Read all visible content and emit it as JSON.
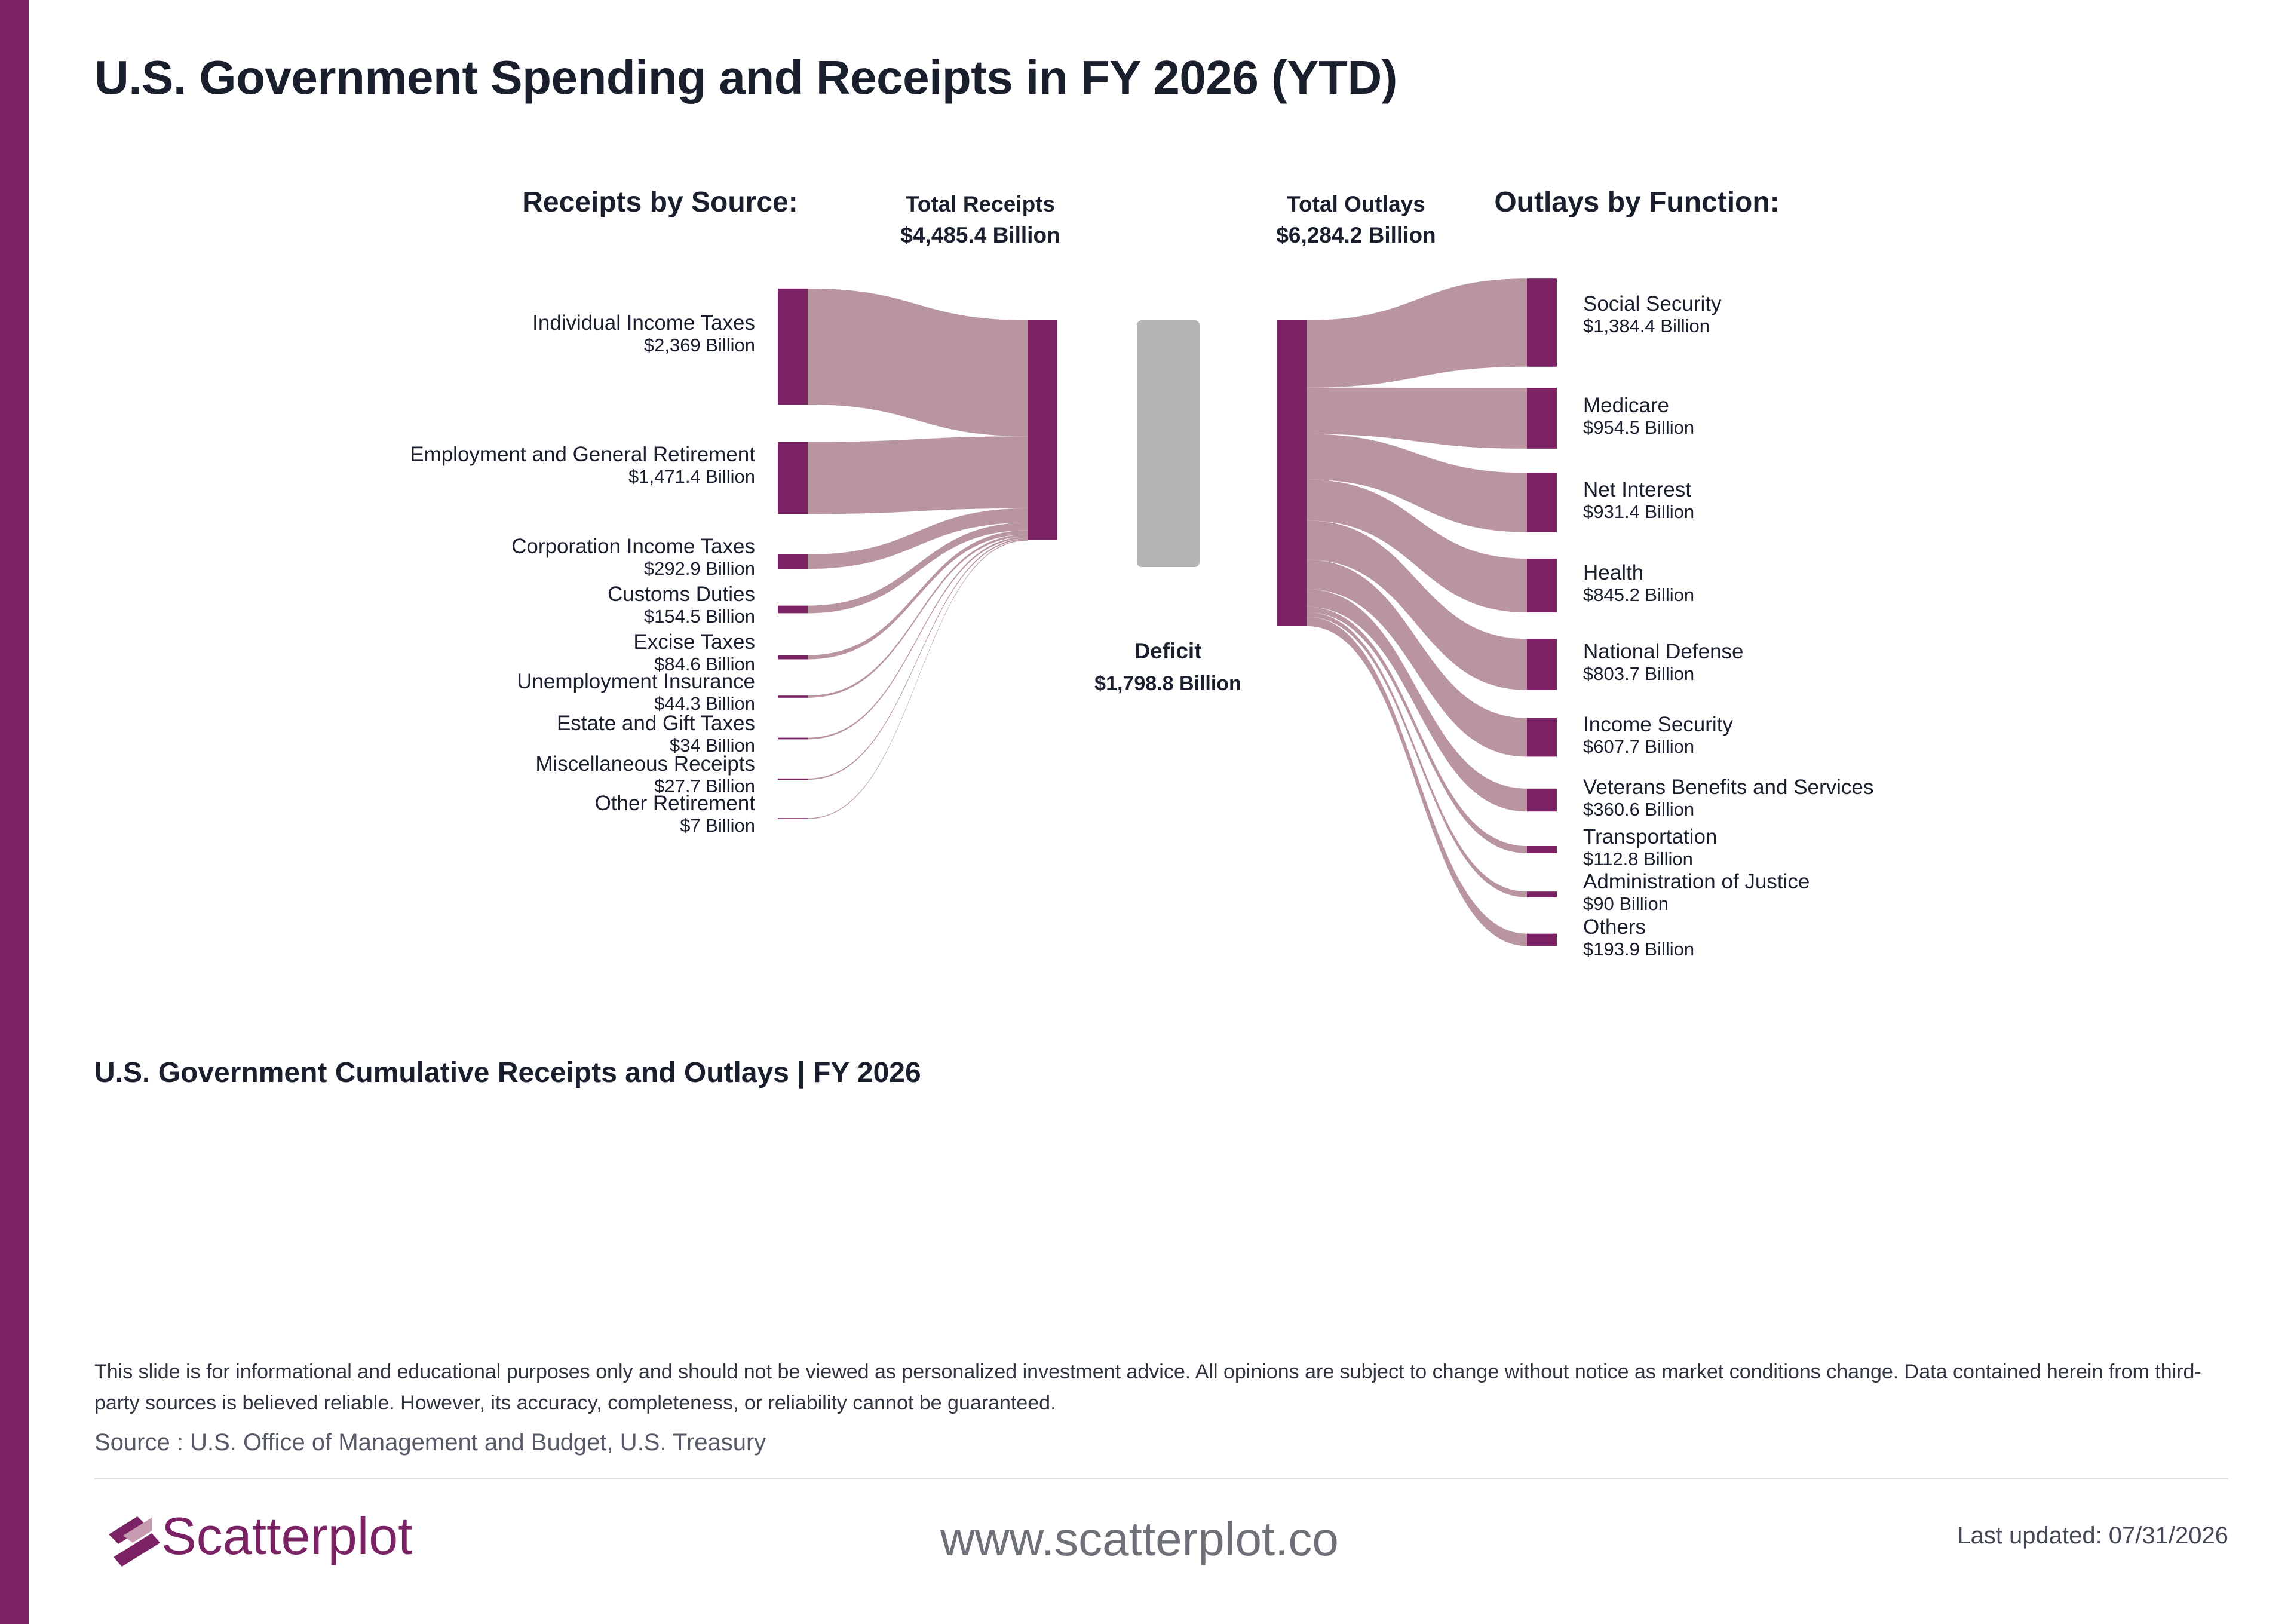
{
  "title": "U.S. Government Spending and Receipts in FY 2026 (YTD)",
  "colors": {
    "accent": "#7a2263",
    "flow": "#b9959f",
    "deficit": "#b5b5b5",
    "text": "#1a1f2e"
  },
  "chart_data": {
    "type": "sankey",
    "receipts_heading": "Receipts by Source:",
    "outlays_heading": "Outlays by Function:",
    "total_receipts": {
      "label": "Total Receipts",
      "value_text": "$4,485.4 Billion",
      "value": 4485.4
    },
    "total_outlays": {
      "label": "Total Outlays",
      "value_text": "$6,284.2 Billion",
      "value": 6284.2
    },
    "deficit": {
      "label": "Deficit",
      "value_text": "$1,798.8 Billion",
      "value": 1798.8
    },
    "receipts": [
      {
        "name": "Individual Income Taxes",
        "value_text": "$2,369 Billion",
        "value": 2369
      },
      {
        "name": "Employment and General Retirement",
        "value_text": "$1,471.4 Billion",
        "value": 1471.4
      },
      {
        "name": "Corporation Income Taxes",
        "value_text": "$292.9 Billion",
        "value": 292.9
      },
      {
        "name": "Customs Duties",
        "value_text": "$154.5 Billion",
        "value": 154.5
      },
      {
        "name": "Excise Taxes",
        "value_text": "$84.6 Billion",
        "value": 84.6
      },
      {
        "name": "Unemployment Insurance",
        "value_text": "$44.3 Billion",
        "value": 44.3
      },
      {
        "name": "Estate and Gift Taxes",
        "value_text": "$34 Billion",
        "value": 34
      },
      {
        "name": "Miscellaneous Receipts",
        "value_text": "$27.7 Billion",
        "value": 27.7
      },
      {
        "name": "Other Retirement",
        "value_text": "$7 Billion",
        "value": 7
      }
    ],
    "outlays": [
      {
        "name": "Social Security",
        "value_text": "$1,384.4 Billion",
        "value": 1384.4
      },
      {
        "name": "Medicare",
        "value_text": "$954.5 Billion",
        "value": 954.5
      },
      {
        "name": "Net Interest",
        "value_text": "$931.4 Billion",
        "value": 931.4
      },
      {
        "name": "Health",
        "value_text": "$845.2 Billion",
        "value": 845.2
      },
      {
        "name": "National Defense",
        "value_text": "$803.7 Billion",
        "value": 803.7
      },
      {
        "name": "Income Security",
        "value_text": "$607.7 Billion",
        "value": 607.7
      },
      {
        "name": "Veterans Benefits and Services",
        "value_text": "$360.6 Billion",
        "value": 360.6
      },
      {
        "name": "Transportation",
        "value_text": "$112.8 Billion",
        "value": 112.8
      },
      {
        "name": "Administration of Justice",
        "value_text": "$90 Billion",
        "value": 90
      },
      {
        "name": "Others",
        "value_text": "$193.9 Billion",
        "value": 193.9
      }
    ]
  },
  "subtitle": "U.S. Government Cumulative Receipts and Outlays | FY 2026",
  "footer": {
    "disclaimer": "This slide is for informational and educational purposes only and should not be viewed as personalized investment advice. All opinions are subject to change without notice as market conditions change. Data contained herein from third-party sources is believed reliable. However, its accuracy, completeness, or reliability cannot be guaranteed.",
    "source": "Source : U.S. Office of Management and Budget, U.S. Treasury",
    "brand": "Scatterplot",
    "website": "www.scatterplot.co",
    "updated": "Last updated: 07/31/2026",
    "logo_icon": "scatterplot-logo-icon"
  }
}
